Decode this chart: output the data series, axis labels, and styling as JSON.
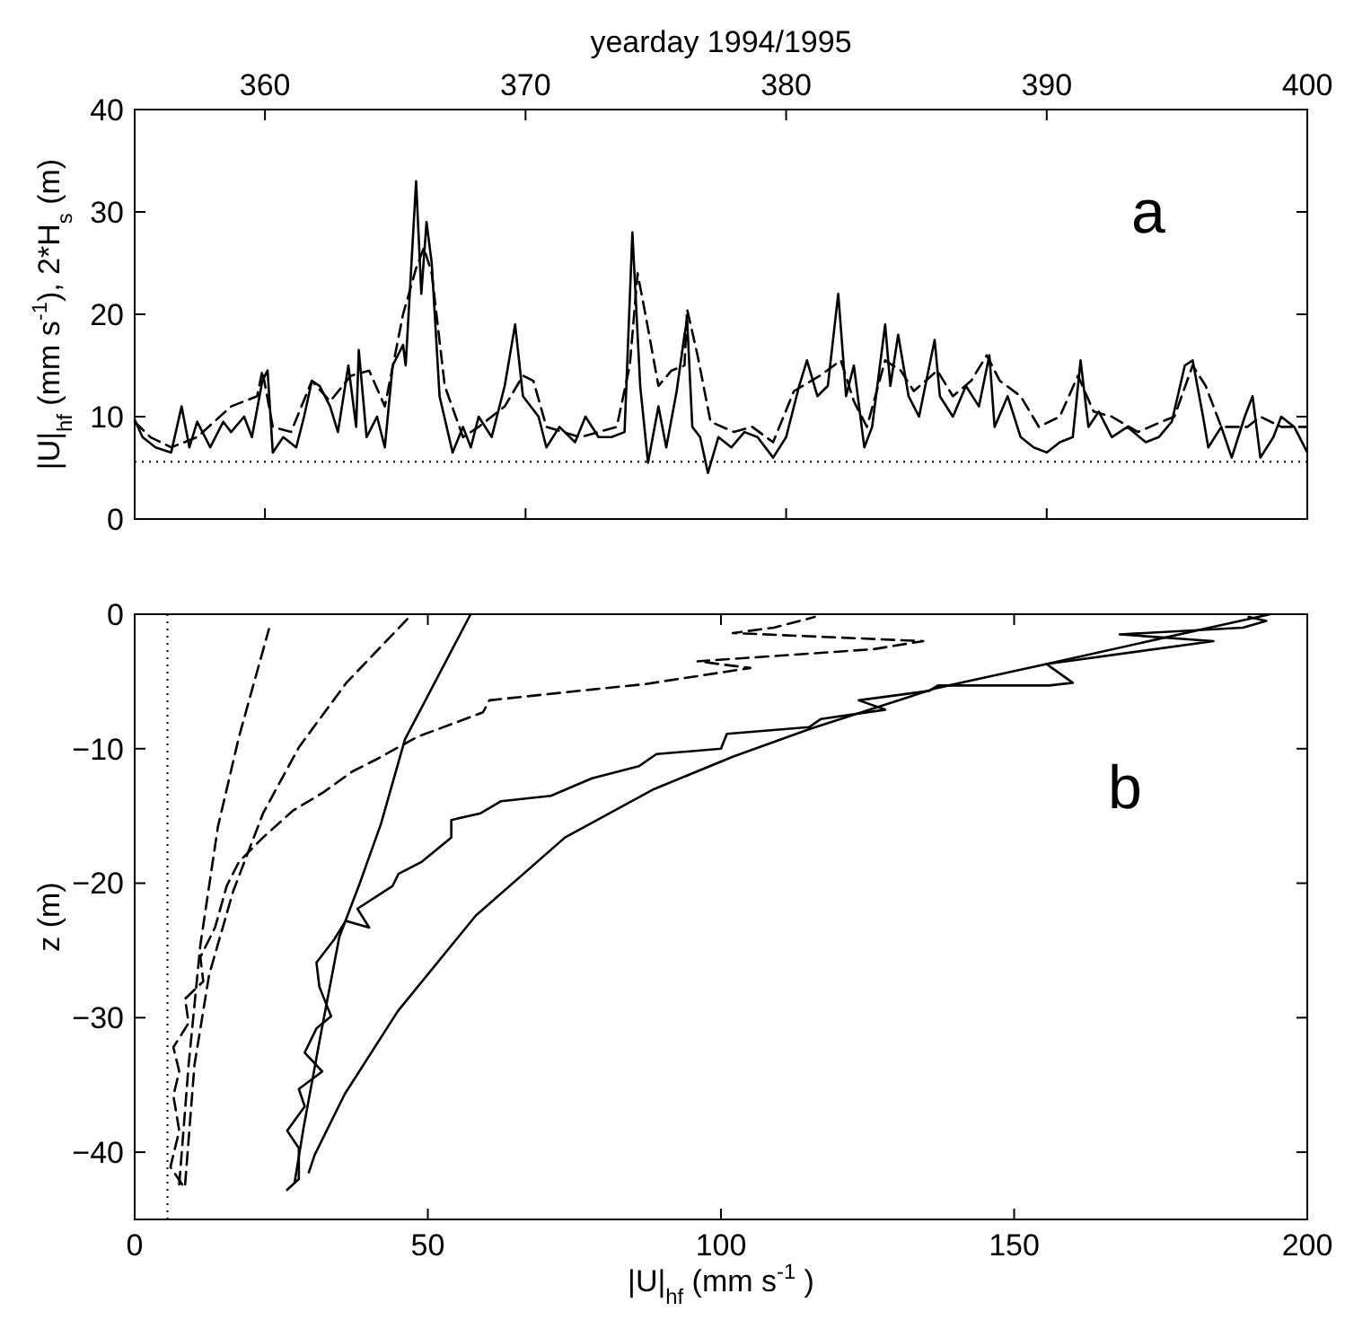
{
  "chart_data": [
    {
      "type": "line",
      "xlabel": "yearday 1994/1995",
      "ylabel": "|U|$_{hf}$ (mm s$^{-1}$), 2*H$_{s}$ (m)",
      "xlim": [
        355,
        400
      ],
      "xticks": [
        360,
        370,
        380,
        390,
        400
      ],
      "ylim": [
        0,
        40
      ],
      "yticks": [
        0,
        10,
        20,
        30,
        40
      ],
      "annotations": [
        "a"
      ],
      "ref_lines": [
        {
          "axis": "y",
          "value": 5.6,
          "color": "#000000",
          "line_style": "dotted"
        }
      ],
      "series": [
        {
          "color": "#000000",
          "line_style": "solid",
          "x": [
            355.0,
            355.3,
            355.8,
            356.4,
            356.8,
            357.1,
            357.4,
            357.9,
            358.4,
            358.7,
            359.2,
            359.5,
            359.9,
            360.1,
            360.3,
            360.7,
            361.2,
            361.5,
            361.8,
            362.1,
            362.5,
            362.8,
            363.2,
            363.5,
            363.6,
            363.9,
            364.3,
            364.6,
            364.9,
            365.3,
            365.4,
            365.8,
            366.0,
            366.2,
            366.4,
            366.7,
            367.2,
            367.6,
            367.9,
            368.2,
            368.7,
            369.2,
            369.6,
            369.9,
            370.5,
            370.8,
            371.3,
            371.9,
            372.3,
            372.8,
            373.3,
            373.8,
            374.1,
            374.4,
            374.7,
            375.1,
            375.4,
            375.8,
            376.1,
            376.2,
            376.4,
            376.7,
            377.0,
            377.4,
            377.9,
            378.4,
            378.9,
            379.5,
            380.0,
            380.5,
            380.8,
            381.2,
            381.6,
            382.0,
            382.3,
            382.6,
            383.0,
            383.3,
            383.8,
            384.0,
            384.3,
            384.7,
            385.1,
            385.7,
            385.9,
            386.4,
            386.9,
            387.4,
            387.8,
            388.0,
            388.5,
            389.0,
            389.5,
            390.0,
            390.5,
            391.0,
            391.3,
            391.6,
            392.0,
            392.5,
            393.1,
            393.8,
            394.3,
            394.8,
            395.3,
            395.6,
            396.0,
            396.2,
            396.7,
            397.1,
            397.6,
            397.9,
            398.2,
            398.7,
            399.0,
            399.5,
            400.0
          ],
          "values": [
            9.7,
            8,
            7,
            6.5,
            11,
            7,
            9.5,
            7,
            9.5,
            8.5,
            10,
            8,
            13.5,
            14.5,
            6.5,
            8,
            7,
            10,
            13.5,
            13,
            11,
            8.5,
            15,
            9,
            16.5,
            8,
            10,
            7,
            15,
            17,
            15,
            33,
            22,
            29,
            25,
            12,
            6.5,
            9,
            7,
            10,
            8,
            13,
            19,
            12,
            10,
            7,
            9,
            7.5,
            10,
            8,
            8,
            8.5,
            28,
            13,
            5.5,
            11,
            7,
            12.5,
            18,
            19.5,
            9,
            8,
            4.5,
            8,
            7,
            8.5,
            8,
            6,
            8,
            13,
            15.5,
            12,
            13,
            22,
            12,
            15,
            7,
            9,
            19,
            13,
            18,
            12,
            10,
            17.5,
            12,
            10,
            13,
            11,
            16,
            9,
            12,
            8,
            7,
            6.5,
            7.5,
            8,
            15.5,
            9,
            10.5,
            8,
            9,
            7.5,
            8,
            9.5,
            15,
            15.5,
            10,
            7,
            9,
            6,
            10,
            12,
            6,
            8,
            10,
            9,
            6.5
          ]
        },
        {
          "color": "#000000",
          "line_style": "dashed",
          "x": [
            355.0,
            355.6,
            356.4,
            357.4,
            358.7,
            359.7,
            359.9,
            360.3,
            361.0,
            361.8,
            362.5,
            363.3,
            364.0,
            364.6,
            365.3,
            365.8,
            366.1,
            366.4,
            366.9,
            367.6,
            368.2,
            369.2,
            369.9,
            370.3,
            370.8,
            372.1,
            373.5,
            374.0,
            374.3,
            374.6,
            375.1,
            375.6,
            376.1,
            376.2,
            376.6,
            377.1,
            378.0,
            378.7,
            379.5,
            380.3,
            381.3,
            382.1,
            382.6,
            383.1,
            383.8,
            384.4,
            384.9,
            385.8,
            386.4,
            387.1,
            387.7,
            388.2,
            389.0,
            389.7,
            390.5,
            391.2,
            391.8,
            392.5,
            393.5,
            394.4,
            394.9,
            395.6,
            396.1,
            396.7,
            397.7,
            398.2,
            399.0,
            400.0
          ],
          "values": [
            9.5,
            8,
            7,
            8,
            11,
            12,
            14.5,
            9,
            8.5,
            13.5,
            11.5,
            14,
            14.5,
            11,
            20,
            24.5,
            26.5,
            24,
            13,
            8,
            9,
            11,
            14,
            13.5,
            9,
            8,
            9,
            15,
            24,
            20,
            13,
            14.5,
            15,
            20.5,
            16,
            9.5,
            8.5,
            9,
            7.5,
            12.5,
            14,
            15.5,
            11.5,
            9,
            15.5,
            14.5,
            12.5,
            14.5,
            12,
            13.5,
            16,
            13.5,
            12,
            9,
            10,
            14,
            10.5,
            10,
            8.5,
            9.5,
            10,
            15,
            13,
            9,
            9,
            10,
            9,
            9
          ]
        }
      ]
    },
    {
      "type": "line",
      "xlabel": "|U|$_{hf}$ (mm s$^{-1}$ )",
      "ylabel": "z (m)",
      "xlim": [
        0,
        200
      ],
      "xticks": [
        0,
        50,
        100,
        150,
        200
      ],
      "ylim": [
        -45,
        0
      ],
      "yticks": [
        -40,
        -30,
        -20,
        -10,
        0
      ],
      "annotations": [
        "b"
      ],
      "ref_lines": [
        {
          "axis": "x",
          "value": 5.6,
          "color": "#000000",
          "line_style": "dotted"
        }
      ],
      "series": [
        {
          "color": "#000000",
          "line_style": "solid",
          "x": [
            26,
            28,
            28,
            26,
            29,
            28,
            32,
            29,
            31,
            33.5,
            31.5,
            31,
            34,
            36,
            40,
            38,
            44,
            45,
            49,
            54,
            54,
            59,
            62.5,
            71,
            78,
            86,
            89,
            100,
            101,
            115,
            117,
            128,
            123.5,
            135.5,
            137,
            156,
            160,
            155.5,
            184,
            168,
            189,
            193,
            190
          ],
          "values": [
            -42.8,
            -42,
            -39.7,
            -38.4,
            -36.6,
            -35.3,
            -34,
            -32.6,
            -30.8,
            -29.9,
            -27.7,
            -25.9,
            -24.2,
            -22.8,
            -23.3,
            -21.9,
            -20.2,
            -19.3,
            -18.4,
            -16.6,
            -15.3,
            -14.8,
            -13.9,
            -13.5,
            -12.2,
            -11.3,
            -10.4,
            -10,
            -8.9,
            -8.4,
            -7.8,
            -7.1,
            -6.4,
            -5.7,
            -5.3,
            -5.3,
            -5.1,
            -3.7,
            -2,
            -1.5,
            -1,
            -0.5,
            -0.2
          ]
        },
        {
          "color": "#000000",
          "line_style": "dashed",
          "x": [
            8.1,
            6.1,
            7.6,
            6.6,
            7.6,
            6.6,
            9.2,
            8.6,
            11.7,
            11.2,
            13.7,
            15.7,
            17.8,
            21.9,
            27,
            32,
            37.1,
            41.2,
            48.3,
            59.4,
            60.5,
            78,
            87,
            105,
            96,
            126,
            134.5,
            102,
            109,
            116
          ],
          "values": [
            -42.4,
            -41.1,
            -38.4,
            -35.8,
            -34,
            -32.2,
            -30.4,
            -28.6,
            -27.3,
            -25.5,
            -23.3,
            -20.2,
            -18.4,
            -16.6,
            -14.6,
            -13.3,
            -11.7,
            -10.8,
            -9.1,
            -7.3,
            -6.4,
            -5.6,
            -5.2,
            -4,
            -3.5,
            -2.6,
            -2,
            -1.4,
            -1,
            -0.2
          ]
        },
        {
          "color": "#000000",
          "line_style": "solid",
          "x": [
            27.3,
            28.8,
            31.8,
            34.9,
            38.4,
            42,
            46.1,
            57.3
          ],
          "values": [
            -42.2,
            -38.2,
            -31.1,
            -24,
            -20,
            -15.6,
            -9.3,
            0
          ]
        },
        {
          "color": "#000000",
          "line_style": "solid",
          "x": [
            29.7,
            30.7,
            35.8,
            44.9,
            58.2,
            73.4,
            88.6,
            102,
            115.4,
            136.7,
            155.5,
            193.7
          ],
          "values": [
            -41.5,
            -40.2,
            -35.7,
            -29.5,
            -22.4,
            -16.6,
            -13,
            -10.6,
            -8.5,
            -5.5,
            -3.7,
            0
          ]
        },
        {
          "color": "#000000",
          "line_style": "dashed",
          "x": [
            7.6,
            9.2,
            11.2,
            14.2,
            17.8,
            22.9
          ],
          "values": [
            -42.4,
            -33.5,
            -24.6,
            -15.8,
            -9.1,
            -1.1
          ]
        },
        {
          "color": "#000000",
          "line_style": "dashed",
          "x": [
            8.6,
            10.2,
            12.7,
            16.8,
            21.9,
            28,
            36.1,
            47.3
          ],
          "values": [
            -42.4,
            -33.5,
            -26.8,
            -20.6,
            -14.8,
            -9.9,
            -5.1,
            0
          ]
        }
      ]
    }
  ]
}
